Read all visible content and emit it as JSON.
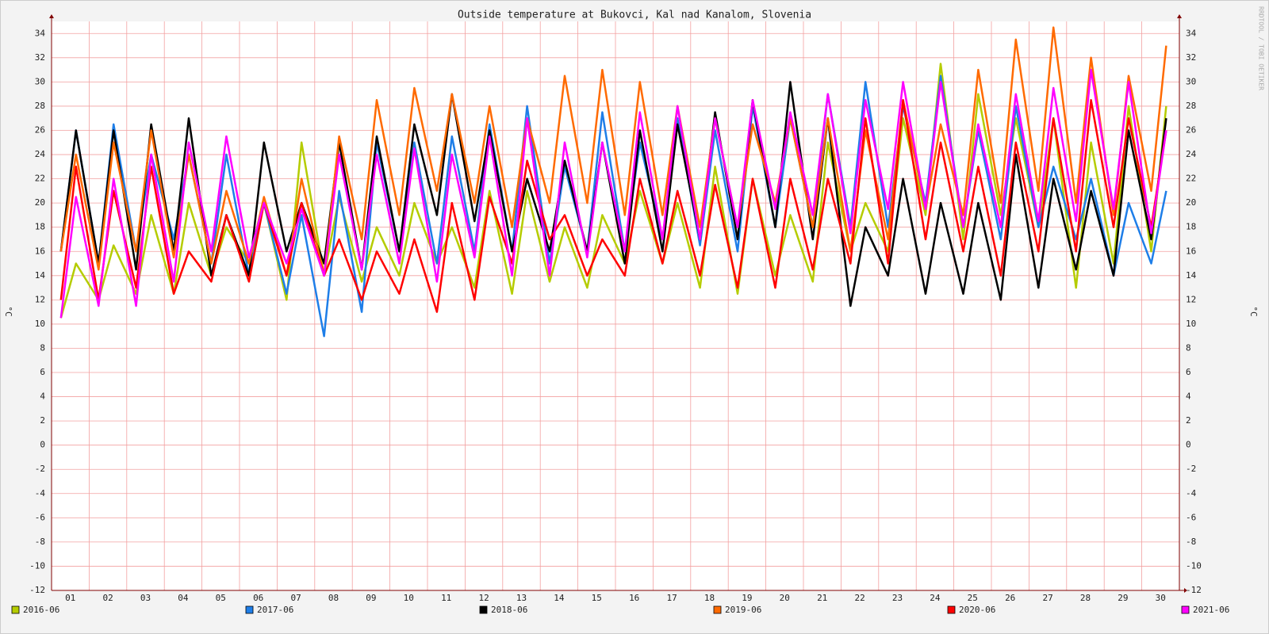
{
  "chart_data": {
    "type": "line",
    "title": "Outside temperature at Bukovci, Kal nad Kanalom, Slovenia",
    "y_label": "°C",
    "watermark": "RRDTOOL / TOBI OETIKER",
    "x": [
      0.25,
      0.65,
      1.25,
      1.65,
      2.25,
      2.65,
      3.25,
      3.65,
      4.25,
      4.65,
      5.25,
      5.65,
      6.25,
      6.65,
      7.25,
      7.65,
      8.25,
      8.65,
      9.25,
      9.65,
      10.25,
      10.65,
      11.25,
      11.65,
      12.25,
      12.65,
      13.25,
      13.65,
      14.25,
      14.65,
      15.25,
      15.65,
      16.25,
      16.65,
      17.25,
      17.65,
      18.25,
      18.65,
      19.25,
      19.65,
      20.25,
      20.65,
      21.25,
      21.65,
      22.25,
      22.65,
      23.25,
      23.65,
      24.25,
      24.65,
      25.25,
      25.65,
      26.25,
      26.65,
      27.25,
      27.65,
      28.25,
      28.65,
      29.25,
      29.65
    ],
    "xlim": [
      0,
      30
    ],
    "xticks": [
      {
        "value": 0,
        "label": "01"
      },
      {
        "value": 1,
        "label": "02"
      },
      {
        "value": 2,
        "label": "03"
      },
      {
        "value": 3,
        "label": "04"
      },
      {
        "value": 4,
        "label": "05"
      },
      {
        "value": 5,
        "label": "06"
      },
      {
        "value": 6,
        "label": "07"
      },
      {
        "value": 7,
        "label": "08"
      },
      {
        "value": 8,
        "label": "09"
      },
      {
        "value": 9,
        "label": "10"
      },
      {
        "value": 10,
        "label": "11"
      },
      {
        "value": 11,
        "label": "12"
      },
      {
        "value": 12,
        "label": "13"
      },
      {
        "value": 13,
        "label": "14"
      },
      {
        "value": 14,
        "label": "15"
      },
      {
        "value": 15,
        "label": "16"
      },
      {
        "value": 16,
        "label": "17"
      },
      {
        "value": 17,
        "label": "18"
      },
      {
        "value": 18,
        "label": "19"
      },
      {
        "value": 19,
        "label": "20"
      },
      {
        "value": 20,
        "label": "21"
      },
      {
        "value": 21,
        "label": "22"
      },
      {
        "value": 22,
        "label": "23"
      },
      {
        "value": 23,
        "label": "24"
      },
      {
        "value": 24,
        "label": "25"
      },
      {
        "value": 25,
        "label": "26"
      },
      {
        "value": 26,
        "label": "27"
      },
      {
        "value": 27,
        "label": "28"
      },
      {
        "value": 28,
        "label": "29"
      },
      {
        "value": 29,
        "label": "30"
      }
    ],
    "ylim": [
      -12,
      35
    ],
    "yticks": [
      -12,
      -10,
      -8,
      -6,
      -4,
      -2,
      0,
      2,
      4,
      6,
      8,
      10,
      12,
      14,
      16,
      18,
      20,
      22,
      24,
      26,
      28,
      30,
      32,
      34
    ],
    "grid": true,
    "series": [
      {
        "name": "2016-06",
        "color": "#b5cc00",
        "values": [
          10.5,
          15,
          12,
          16.5,
          12.5,
          19,
          12.5,
          20,
          14,
          18,
          15,
          20,
          12,
          25,
          14,
          20.5,
          13.5,
          18,
          14,
          20,
          15,
          18,
          13,
          21,
          12.5,
          21,
          13.5,
          18,
          13,
          19,
          15,
          21,
          15,
          20,
          13,
          23,
          12.5,
          22,
          14,
          19,
          13.5,
          25,
          16,
          20,
          16,
          27,
          19,
          31.5,
          17,
          29,
          19,
          27,
          18,
          27,
          13,
          25,
          15,
          28,
          16,
          28
        ]
      },
      {
        "name": "2017-06",
        "color": "#1e7ee8",
        "values": [
          16,
          26,
          15,
          26.5,
          16,
          24,
          17,
          24,
          15,
          24,
          14,
          20,
          12.5,
          19,
          9,
          21,
          11,
          25,
          16,
          25,
          15,
          25.5,
          16,
          26.5,
          16,
          28,
          15,
          23,
          16,
          27.5,
          16,
          25,
          17,
          27,
          16.5,
          26,
          16,
          28,
          18,
          27,
          18,
          29,
          18,
          30,
          18,
          28,
          20,
          30.5,
          18,
          26,
          17,
          28,
          18,
          23,
          17,
          22,
          14,
          20,
          15,
          21
        ]
      },
      {
        "name": "2018-06",
        "color": "#000000",
        "values": [
          16,
          26,
          15,
          26,
          14.5,
          26.5,
          16,
          27,
          14,
          19,
          14,
          25,
          16,
          20,
          15,
          25,
          14.5,
          25.5,
          16,
          26.5,
          19,
          29,
          18.5,
          26,
          16,
          22,
          16,
          23.5,
          16,
          25,
          15,
          26,
          16,
          26.5,
          17,
          27.5,
          17,
          28.5,
          18,
          30,
          17,
          27,
          11.5,
          18,
          14,
          22,
          12.5,
          20,
          12.5,
          20,
          12,
          24,
          13,
          22,
          14.5,
          21,
          14,
          26,
          17,
          27
        ]
      },
      {
        "name": "2019-06",
        "color": "#ff6a00",
        "values": [
          16,
          24,
          14.5,
          25,
          16,
          26,
          15.5,
          24,
          15,
          21,
          15,
          20.5,
          14,
          22,
          14,
          25.5,
          17,
          28.5,
          19,
          29.5,
          21,
          29,
          20,
          28,
          18,
          27,
          20,
          30.5,
          20,
          31,
          19,
          30,
          19,
          28,
          18,
          27,
          18,
          26.5,
          20,
          27,
          18,
          27,
          16,
          26,
          17,
          28.5,
          19.5,
          26.5,
          19,
          31,
          20,
          33.5,
          21,
          34.5,
          20,
          32,
          19,
          30.5,
          21,
          33
        ]
      },
      {
        "name": "2020-06",
        "color": "#ff0000",
        "values": [
          12,
          23,
          12,
          21,
          13,
          23,
          12.5,
          16,
          13.5,
          19,
          13.5,
          20,
          14,
          20,
          14,
          17,
          12,
          16,
          12.5,
          17,
          11,
          20,
          12,
          20.5,
          15,
          23.5,
          17,
          19,
          14,
          17,
          14,
          22,
          15,
          21,
          14,
          21.5,
          13,
          22,
          13,
          22,
          14.5,
          22,
          15,
          27,
          15,
          28.5,
          17,
          25,
          16,
          23,
          14,
          25,
          16,
          27,
          16,
          28.5,
          18,
          27,
          18,
          26
        ]
      },
      {
        "name": "2021-06",
        "color": "#ff00ff",
        "values": [
          10.5,
          20.5,
          11.5,
          22,
          11.5,
          24,
          13.5,
          25,
          16,
          25.5,
          15.5,
          20,
          15,
          19.5,
          14,
          24,
          14.5,
          24,
          15,
          24.5,
          13.5,
          24,
          15.5,
          25.5,
          14,
          27,
          14,
          25,
          15.5,
          25,
          16,
          27.5,
          17,
          28,
          17,
          27,
          18,
          28.5,
          19.5,
          27.5,
          19,
          29,
          17.5,
          28.5,
          19.5,
          30,
          19.5,
          30,
          18,
          26.5,
          18,
          29,
          18.5,
          29.5,
          18.5,
          31,
          19.5,
          30,
          17.5,
          26
        ]
      }
    ]
  }
}
